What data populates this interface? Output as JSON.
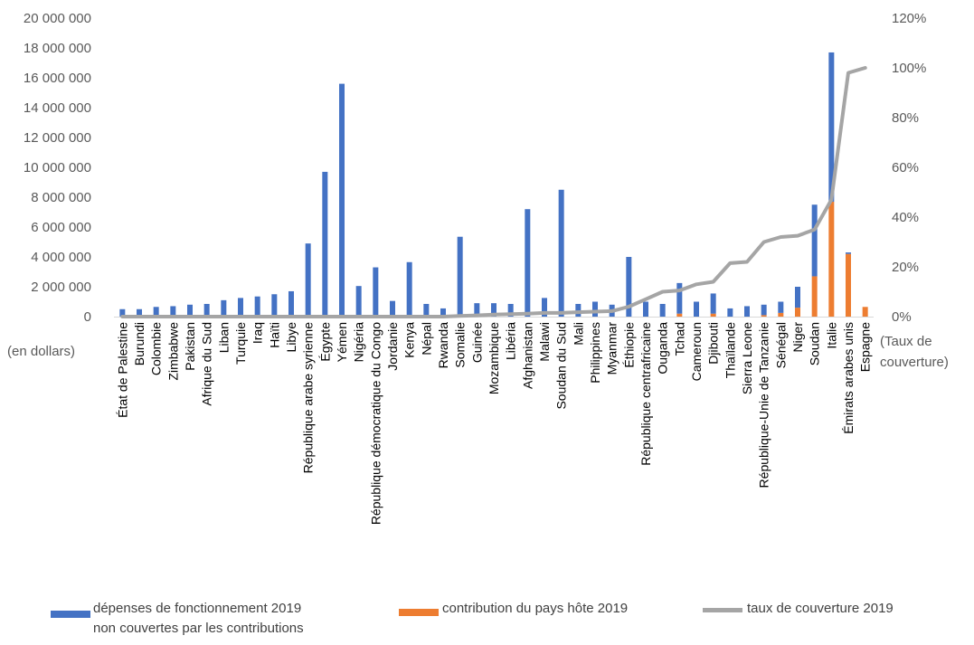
{
  "chart_data": {
    "type": "bar",
    "subtype": "stacked-bar-with-line-on-secondary-axis",
    "left_axis_unit": "(en dollars)",
    "right_axis_unit": [
      "(Taux de",
      "couverture)"
    ],
    "ylim": [
      0,
      20000000
    ],
    "y_ticks": [
      "0",
      "2 000 000",
      "4 000 000",
      "6 000 000",
      "8 000 000",
      "10 000 000",
      "12 000 000",
      "14 000 000",
      "16 000 000",
      "18 000 000",
      "20 000 000"
    ],
    "y2lim": [
      0,
      1.2
    ],
    "y2_ticks": [
      "0%",
      "20%",
      "40%",
      "60%",
      "80%",
      "100%",
      "120%"
    ],
    "grid": false,
    "legend_position": "bottom",
    "colors": {
      "blue": "#4472C4",
      "orange": "#ED7D31",
      "gray": "#A5A5A5"
    },
    "categories": [
      "État de Palestine",
      "Burundi",
      "Colombie",
      "Zimbabwe",
      "Pakistan",
      "Afrique du Sud",
      "Liban",
      "Turquie",
      "Iraq",
      "Haïti",
      "Libye",
      "République arabe syrienne",
      "Égypte",
      "Yémen",
      "Nigéria",
      "République démocratique du Congo",
      "Jordanie",
      "Kenya",
      "Népal",
      "Rwanda",
      "Somalie",
      "Guinée",
      "Mozambique",
      "Libéria",
      "Afghanistan",
      "Malawi",
      "Soudan du Sud",
      "Mali",
      "Philippines",
      "Myanmar",
      "Éthiopie",
      "République centrafricaine",
      "Ouganda",
      "Tchad",
      "Cameroun",
      "Djibouti",
      "Thaïlande",
      "Sierra Leone",
      "République-Unie de Tanzanie",
      "Sénégal",
      "Niger",
      "Soudan",
      "Italie",
      "Émirats arabes unis",
      "Espagne"
    ],
    "series": [
      {
        "name": "dépenses de fonctionnement 2019 non couvertes par les contributions",
        "kind": "bar",
        "color": "#4472C4",
        "values": [
          500000,
          500000,
          650000,
          700000,
          800000,
          850000,
          1100000,
          1250000,
          1350000,
          1500000,
          1700000,
          4900000,
          9700000,
          15600000,
          2050000,
          3300000,
          1050000,
          3650000,
          850000,
          550000,
          5350000,
          900000,
          900000,
          850000,
          7200000,
          1250000,
          8500000,
          850000,
          1000000,
          800000,
          4000000,
          1000000,
          850000,
          2050000,
          1000000,
          1350000,
          550000,
          700000,
          700000,
          750000,
          1400000,
          4800000,
          10000000,
          100000,
          0
        ]
      },
      {
        "name": "contribution du pays hôte 2019",
        "kind": "bar",
        "color": "#ED7D31",
        "values": [
          0,
          0,
          0,
          0,
          0,
          0,
          0,
          0,
          0,
          0,
          0,
          0,
          0,
          0,
          0,
          0,
          0,
          0,
          0,
          0,
          0,
          0,
          0,
          0,
          0,
          0,
          0,
          0,
          0,
          0,
          0,
          0,
          0,
          200000,
          0,
          200000,
          0,
          0,
          100000,
          250000,
          600000,
          2700000,
          7700000,
          4200000,
          650000
        ]
      },
      {
        "name": "taux de couverture 2019",
        "kind": "line",
        "axis": "right",
        "color": "#A5A5A5",
        "values": [
          0,
          0,
          0,
          0,
          0,
          0,
          0,
          0,
          0,
          0,
          0,
          0,
          0,
          0,
          0,
          0,
          0,
          0,
          0,
          0,
          0.003,
          0.005,
          0.008,
          0.01,
          0.012,
          0.015,
          0.015,
          0.018,
          0.02,
          0.022,
          0.04,
          0.07,
          0.1,
          0.105,
          0.13,
          0.14,
          0.215,
          0.22,
          0.3,
          0.32,
          0.325,
          0.35,
          0.47,
          0.98,
          1.0
        ]
      }
    ]
  },
  "legend": {
    "blue_line1": "dépenses de fonctionnement 2019",
    "blue_line2": "non couvertes par les contributions",
    "orange": "contribution du pays hôte 2019",
    "gray": "taux de couverture 2019"
  }
}
